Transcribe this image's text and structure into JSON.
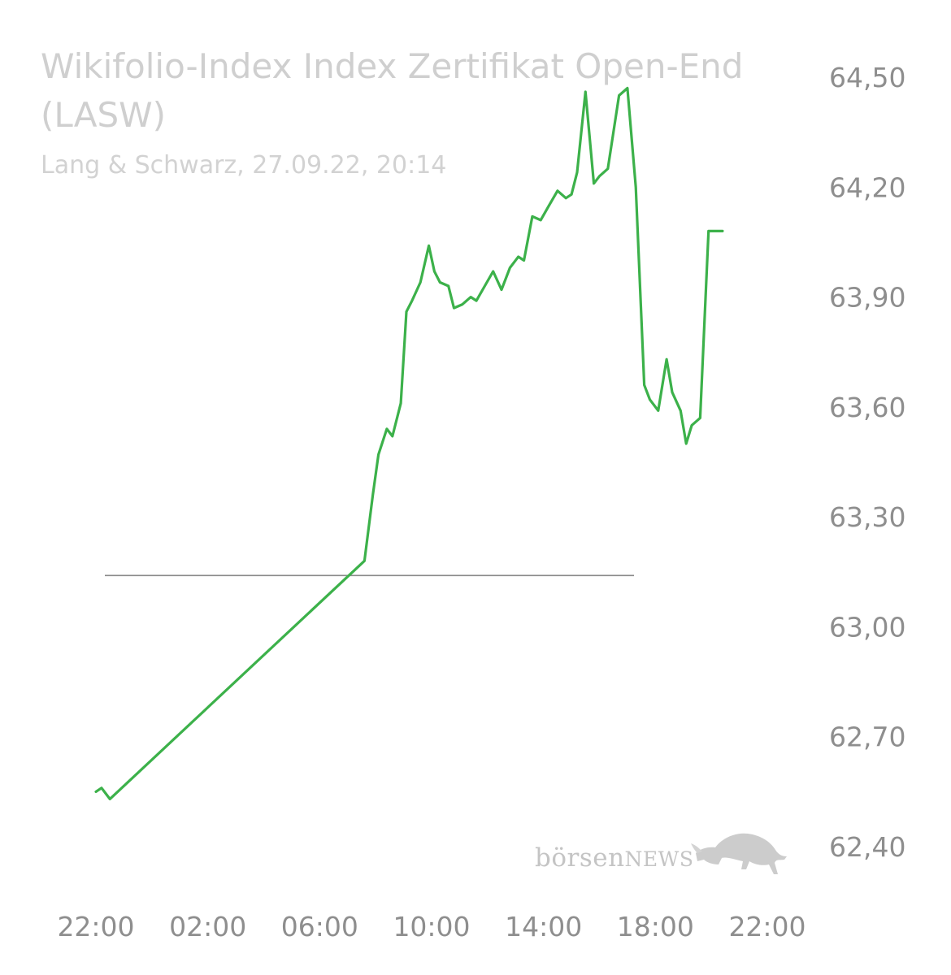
{
  "chart_data": {
    "type": "line",
    "title": "Wikifolio-Index Index Zertifikat Open-End (LASW)",
    "subtitle": "Lang & Schwarz, 27.09.22, 20:14",
    "xlabel": "",
    "ylabel": "",
    "x_ticks": [
      "22:00",
      "02:00",
      "06:00",
      "10:00",
      "14:00",
      "18:00",
      "22:00"
    ],
    "x_tick_hours": [
      -2,
      2,
      6,
      10,
      14,
      18,
      22
    ],
    "xlim": [
      -2.3,
      22.3
    ],
    "y_ticks": [
      "64,50",
      "64,20",
      "63,90",
      "63,60",
      "63,30",
      "63,00",
      "62,70",
      "62,40"
    ],
    "y_tick_values": [
      64.5,
      64.2,
      63.9,
      63.6,
      63.3,
      63.0,
      62.7,
      62.4
    ],
    "ylim": [
      62.4,
      64.5
    ],
    "reference_line": 63.14,
    "grid": false,
    "legend": "none",
    "color": "#3cb14a",
    "reference_color": "#8a8a8a",
    "series": [
      {
        "x": [
          -2.0,
          -1.8,
          -1.5,
          7.6,
          7.9,
          8.1,
          8.4,
          8.6,
          8.9,
          9.1,
          9.3,
          9.6,
          9.9,
          10.1,
          10.3,
          10.6,
          10.8,
          11.1,
          11.4,
          11.6,
          11.9,
          12.2,
          12.5,
          12.8,
          13.1,
          13.3,
          13.6,
          13.9,
          14.2,
          14.5,
          14.8,
          15.0,
          15.2,
          15.5,
          15.8,
          16.0,
          16.3,
          16.7,
          17.0,
          17.3,
          17.6,
          17.8,
          18.1,
          18.4,
          18.6,
          18.9,
          19.1,
          19.3,
          19.6,
          19.9,
          20.2,
          20.4
        ],
        "y": [
          62.55,
          62.56,
          62.53,
          63.18,
          63.36,
          63.47,
          63.54,
          63.52,
          63.61,
          63.86,
          63.89,
          63.94,
          64.04,
          63.97,
          63.94,
          63.93,
          63.87,
          63.88,
          63.9,
          63.89,
          63.93,
          63.97,
          63.92,
          63.98,
          64.01,
          64.0,
          64.12,
          64.11,
          64.15,
          64.19,
          64.17,
          64.18,
          64.24,
          64.46,
          64.21,
          64.23,
          64.25,
          64.45,
          64.47,
          64.2,
          63.66,
          63.62,
          63.59,
          63.73,
          63.64,
          63.59,
          63.5,
          63.55,
          63.57,
          64.08,
          64.08,
          64.08
        ]
      }
    ]
  },
  "watermark": {
    "prefix": "börsen",
    "suffix": "NEWS",
    "icon": "bull-icon"
  }
}
